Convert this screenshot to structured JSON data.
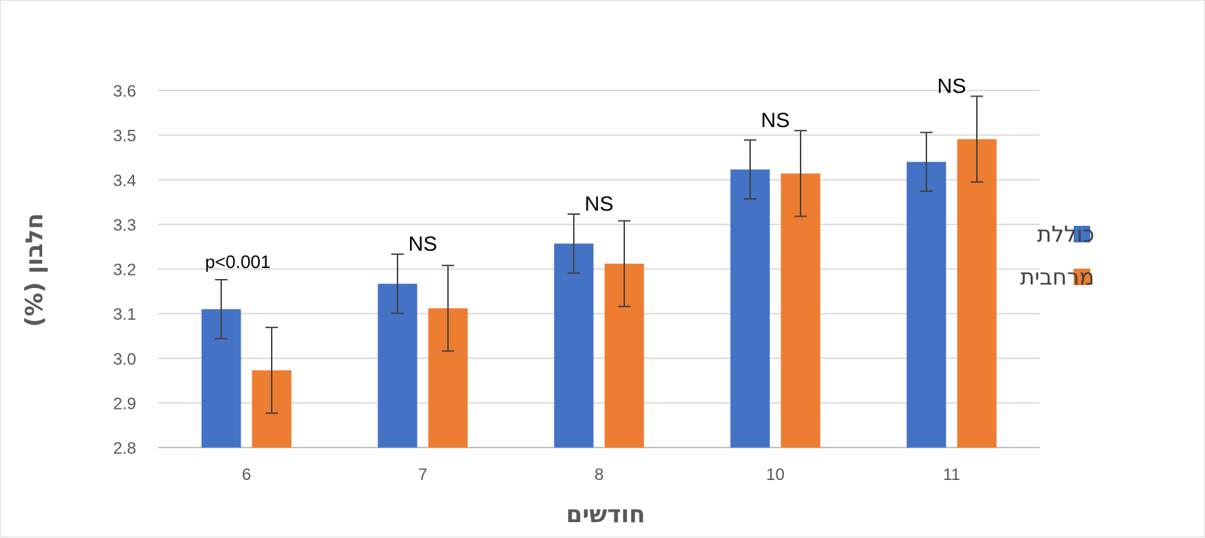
{
  "chart_data": {
    "type": "bar",
    "title": "",
    "xlabel": "חודשים",
    "ylabel": "חלבון (%)",
    "categories": [
      "6",
      "7",
      "8",
      "10",
      "11"
    ],
    "ylim": [
      2.8,
      3.6
    ],
    "yticks": [
      "2.8",
      "2.9",
      "3.0",
      "3.1",
      "3.2",
      "3.3",
      "3.4",
      "3.5",
      "3.6"
    ],
    "grid": true,
    "legend_position": "right",
    "series": [
      {
        "name": "כוללת",
        "color": "#4472C4",
        "values": [
          3.11,
          3.167,
          3.257,
          3.423,
          3.44
        ],
        "error": [
          0.066,
          0.066,
          0.066,
          0.066,
          0.066
        ]
      },
      {
        "name": "מרחבית",
        "color": "#ED7D31",
        "values": [
          2.973,
          3.112,
          3.212,
          3.414,
          3.491
        ],
        "error": [
          0.096,
          0.096,
          0.096,
          0.096,
          0.096
        ]
      }
    ],
    "annotations": [
      "p<0.001",
      "NS",
      "NS",
      "NS",
      "NS"
    ]
  }
}
